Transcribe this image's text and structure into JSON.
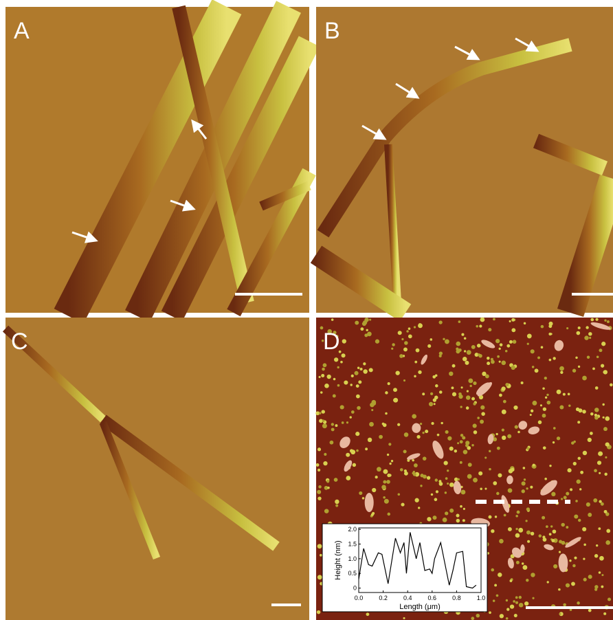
{
  "panels": [
    {
      "label": "A"
    },
    {
      "label": "B"
    },
    {
      "label": "C"
    },
    {
      "label": "D"
    }
  ],
  "inset": {
    "type": "line",
    "xlabel": "Length (μm)",
    "ylabel": "Height (nm)",
    "x": [
      0.0,
      0.04,
      0.08,
      0.11,
      0.16,
      0.19,
      0.24,
      0.3,
      0.34,
      0.37,
      0.39,
      0.42,
      0.47,
      0.5,
      0.54,
      0.58,
      0.6,
      0.62,
      0.67,
      0.74,
      0.77,
      0.8,
      0.85,
      0.88,
      0.93,
      0.96
    ],
    "values": [
      0.3,
      1.35,
      0.8,
      0.75,
      1.2,
      1.15,
      0.15,
      1.7,
      1.2,
      1.55,
      0.5,
      1.9,
      1.0,
      1.55,
      0.6,
      0.65,
      0.5,
      1.0,
      1.55,
      0.1,
      0.6,
      1.2,
      1.25,
      0.05,
      0.0,
      0.1
    ],
    "color": "#000000",
    "xlim": [
      0,
      1.0
    ],
    "ylim": [
      -0.15,
      2.05
    ],
    "xticks": [
      {
        "value": 0,
        "label": "0.0"
      },
      0.2,
      0.4,
      0.6,
      0.8,
      {
        "value": 1,
        "label": "1.0"
      }
    ],
    "yticks": [
      0,
      0.5,
      {
        "value": 1,
        "label": "1.0"
      },
      1.5,
      {
        "value": 2,
        "label": "2.0"
      }
    ]
  }
}
